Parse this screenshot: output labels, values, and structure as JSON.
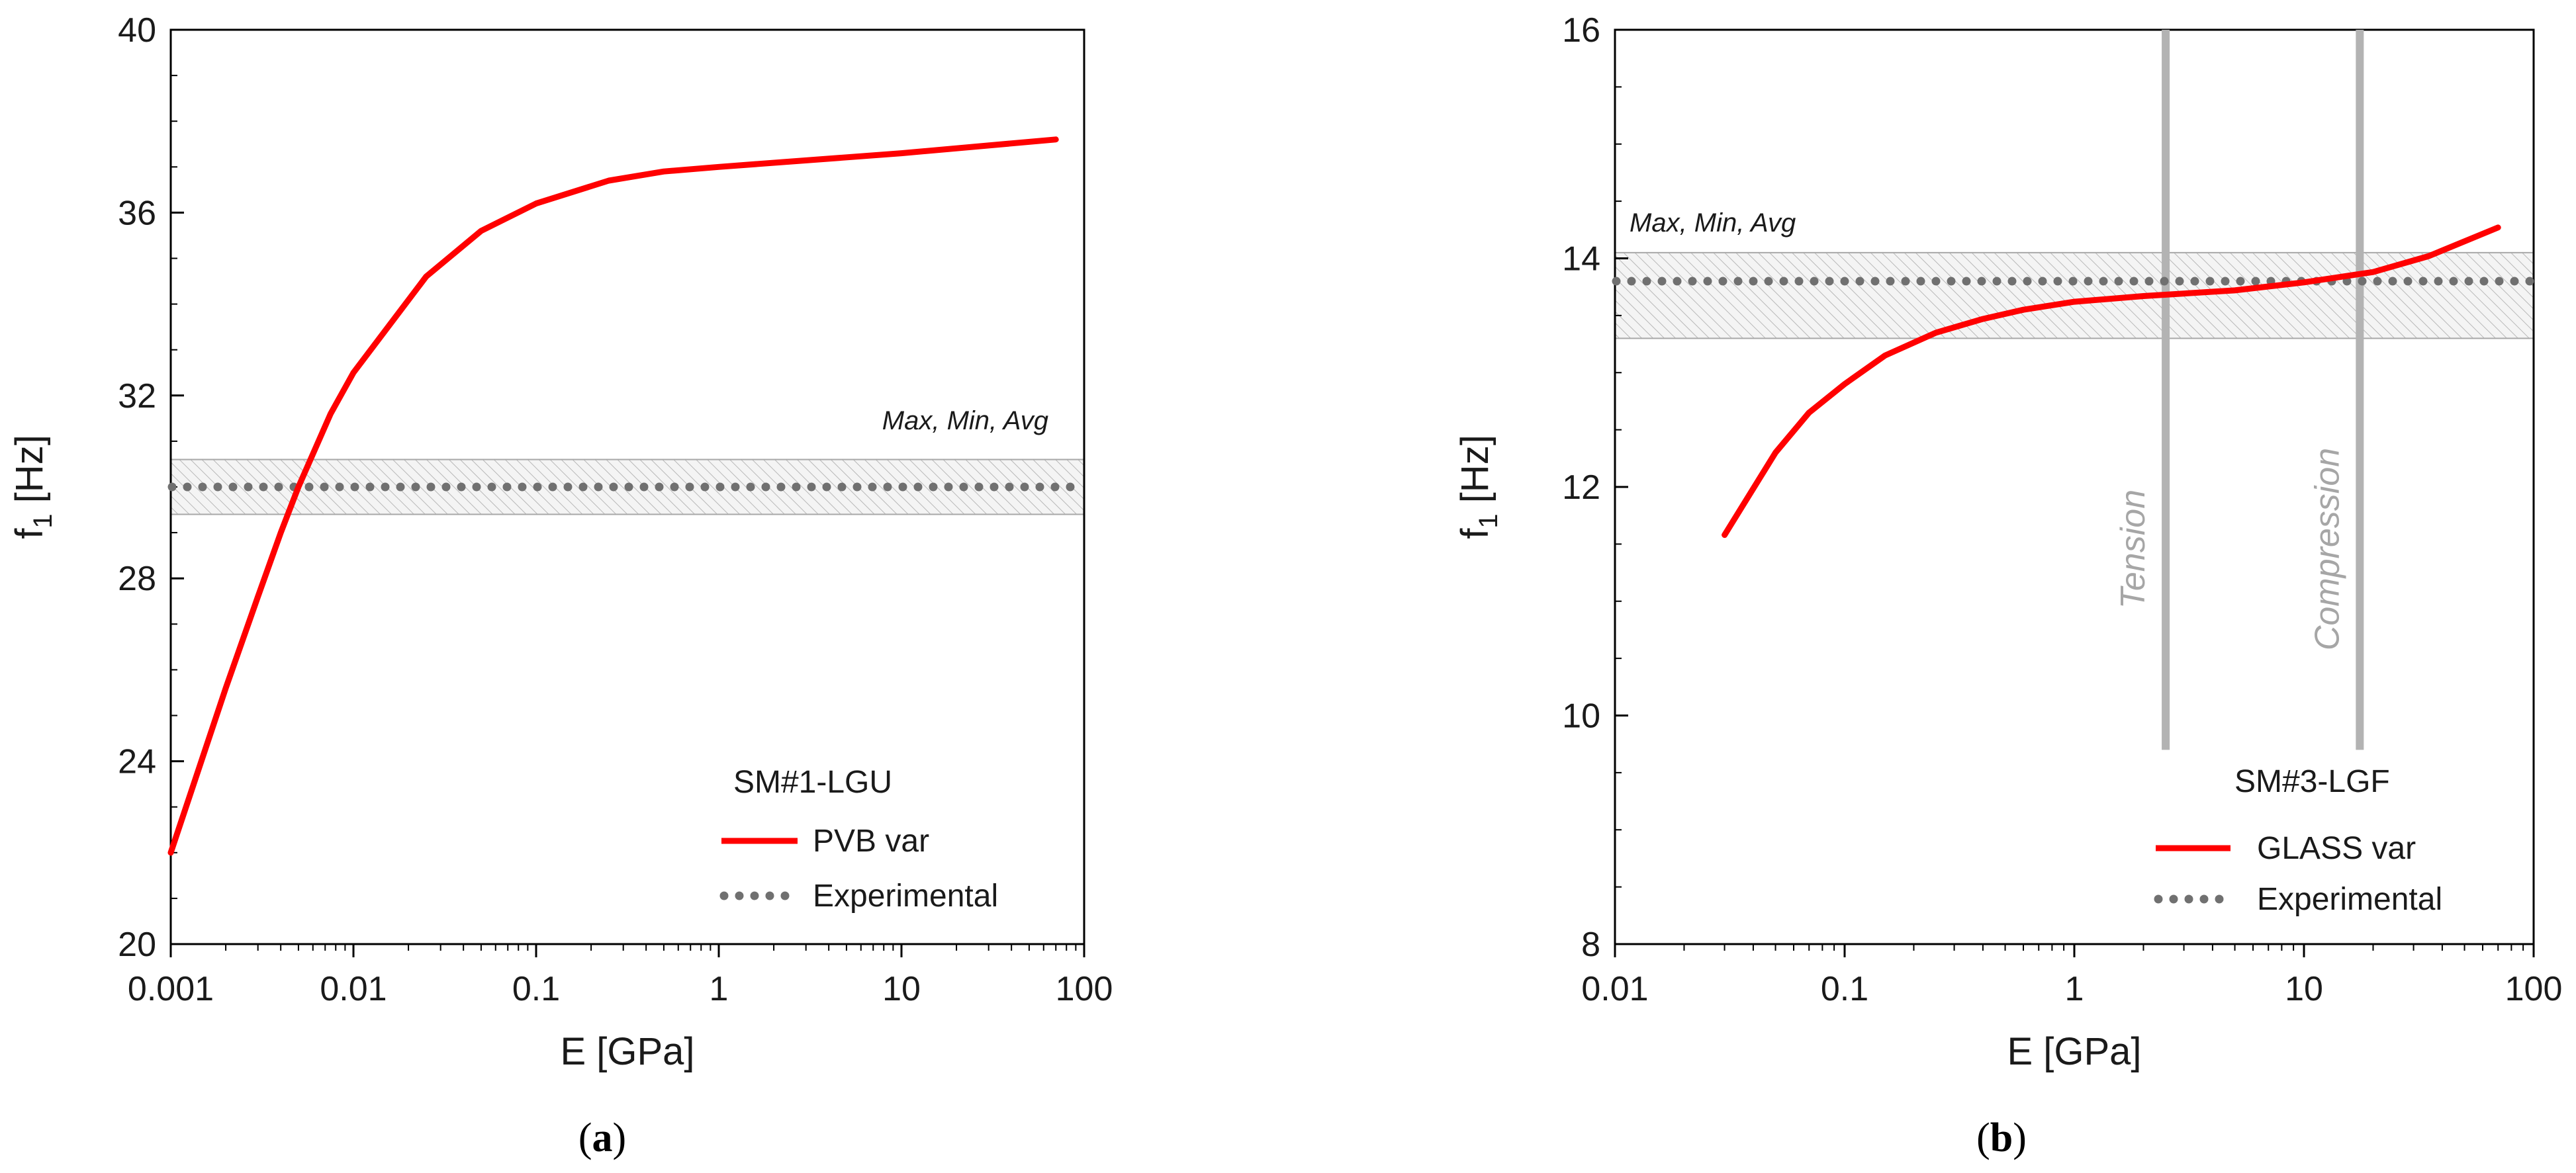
{
  "colors": {
    "model": "#ff0000",
    "experimental": "#707070",
    "band_fill": "#f2f2f2",
    "band_hatch": "#bdbdbd",
    "markers": "#b3b3b3",
    "axis": "#000000"
  },
  "chart_data": [
    {
      "type": "line",
      "panel_label": "(a)",
      "xlabel": "E [GPa]",
      "ylabel": "f1 [Hz]",
      "ylabel_main": "f",
      "ylabel_sub": "1",
      "ylabel_unit": " [Hz]",
      "xscale": "log",
      "xlim": [
        0.001,
        100
      ],
      "ylim": [
        20,
        40
      ],
      "x_ticks": [
        0.001,
        0.01,
        0.1,
        1,
        10,
        100
      ],
      "x_tick_labels": [
        "0.001",
        "0.01",
        "0.1",
        "1",
        "10",
        "100"
      ],
      "y_ticks": [
        20,
        24,
        28,
        32,
        36,
        40
      ],
      "y_tick_labels": [
        "20",
        "24",
        "28",
        "32",
        "36",
        "40"
      ],
      "y_minor_step": 1,
      "band": {
        "label": "Max, Min, Avg",
        "min": 29.4,
        "max": 30.6,
        "avg": 30.0
      },
      "legend_title": "SM#1-LGU",
      "series": [
        {
          "name": "PVB var",
          "x": [
            0.001,
            0.002,
            0.003,
            0.004,
            0.005,
            0.0075,
            0.01,
            0.025,
            0.05,
            0.1,
            0.25,
            0.5,
            1,
            10,
            70
          ],
          "y": [
            22.0,
            25.6,
            27.6,
            29.0,
            30.0,
            31.6,
            32.5,
            34.6,
            35.6,
            36.2,
            36.7,
            36.9,
            37.0,
            37.3,
            37.6
          ]
        },
        {
          "name": "Experimental",
          "x": [
            0.001,
            100
          ],
          "y": [
            30.0,
            30.0
          ]
        }
      ],
      "annotations": []
    },
    {
      "type": "line",
      "panel_label": "(b)",
      "xlabel": "E [GPa]",
      "ylabel": "f1 [Hz]",
      "ylabel_main": "f",
      "ylabel_sub": "1",
      "ylabel_unit": " [Hz]",
      "xscale": "log",
      "xlim": [
        0.01,
        100
      ],
      "ylim": [
        8,
        16
      ],
      "x_ticks": [
        0.01,
        0.1,
        1,
        10,
        100
      ],
      "x_tick_labels": [
        "0.01",
        "0.1",
        "1",
        "10",
        "100"
      ],
      "y_ticks": [
        8,
        10,
        12,
        14,
        16
      ],
      "y_tick_labels": [
        "8",
        "10",
        "12",
        "14",
        "16"
      ],
      "y_minor_step": 0.5,
      "band": {
        "label": "Max, Min, Avg",
        "min": 13.3,
        "max": 14.05,
        "avg": 13.8
      },
      "legend_title": "SM#3-LGF",
      "series": [
        {
          "name": "GLASS var",
          "x": [
            0.03,
            0.05,
            0.07,
            0.1,
            0.15,
            0.25,
            0.4,
            0.6,
            1,
            2,
            5,
            10,
            20,
            35,
            70
          ],
          "y": [
            11.58,
            12.3,
            12.65,
            12.9,
            13.15,
            13.35,
            13.47,
            13.55,
            13.62,
            13.67,
            13.72,
            13.79,
            13.88,
            14.02,
            14.27
          ]
        },
        {
          "name": "Experimental",
          "x": [
            0.01,
            100
          ],
          "y": [
            13.8,
            13.8
          ]
        }
      ],
      "annotations": [
        {
          "text": "Tension",
          "x": 2.5,
          "y_from": 9.7,
          "y_to": 16
        },
        {
          "text": "Compression",
          "x": 17.5,
          "y_from": 9.7,
          "y_to": 16
        }
      ]
    }
  ]
}
